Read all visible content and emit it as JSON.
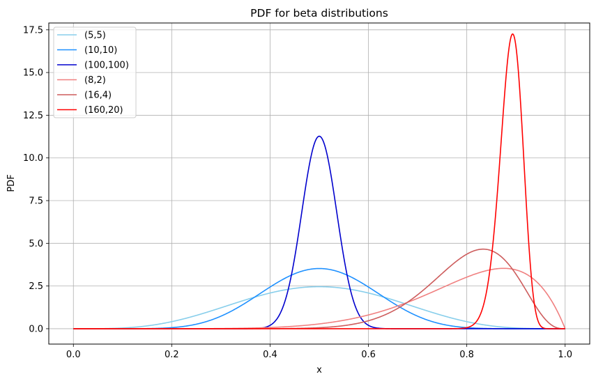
{
  "chart_data": {
    "type": "line",
    "title": "PDF for beta distributions",
    "xlabel": "x",
    "ylabel": "PDF",
    "xlim": [
      -0.05,
      1.05
    ],
    "ylim": [
      -0.9,
      17.9
    ],
    "xticks": [
      0.0,
      0.2,
      0.4,
      0.6,
      0.8,
      1.0
    ],
    "xtick_labels": [
      "0.0",
      "0.2",
      "0.4",
      "0.6",
      "0.8",
      "1.0"
    ],
    "yticks": [
      0.0,
      2.5,
      5.0,
      7.5,
      10.0,
      12.5,
      15.0,
      17.5
    ],
    "ytick_labels": [
      "0.0",
      "2.5",
      "5.0",
      "7.5",
      "10.0",
      "12.5",
      "15.0",
      "17.5"
    ],
    "grid": true,
    "legend_position": "top-left",
    "series": [
      {
        "name": "(5,5)",
        "alpha": 5,
        "beta": 5,
        "color": "#87ceeb"
      },
      {
        "name": "(10,10)",
        "alpha": 10,
        "beta": 10,
        "color": "#1e90ff"
      },
      {
        "name": "(100,100)",
        "alpha": 100,
        "beta": 100,
        "color": "#0000cd"
      },
      {
        "name": "(8,2)",
        "alpha": 8,
        "beta": 2,
        "color": "#f08080"
      },
      {
        "name": "(16,4)",
        "alpha": 16,
        "beta": 4,
        "color": "#cd5c5c"
      },
      {
        "name": "(160,20)",
        "alpha": 160,
        "beta": 20,
        "color": "#ff0000"
      }
    ]
  }
}
